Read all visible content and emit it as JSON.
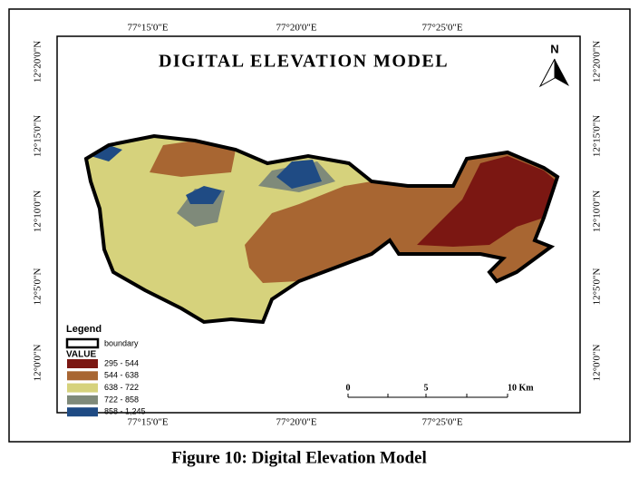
{
  "map": {
    "title": "DIGITAL ELEVATION MODEL",
    "north": "N",
    "top_labels": [
      "77°15'0\"E",
      "77°20'0\"E",
      "77°25'0\"E"
    ],
    "bottom_labels": [
      "77°15'0\"E",
      "77°20'0\"E",
      "77°25'0\"E"
    ],
    "left_labels": [
      "12°20'0\"N",
      "12°15'0\"N",
      "12°10'0\"N",
      "12°5'0\"N",
      "12°0'0\"N"
    ],
    "right_labels": [
      "12°20'0\"N",
      "12°15'0\"N",
      "12°10'0\"N",
      "12°5'0\"N",
      "12°0'0\"N"
    ],
    "legend": {
      "title": "Legend",
      "boundary": "boundary",
      "value_title": "VALUE",
      "classes": [
        {
          "label": "295 - 544",
          "color": "#7b1712"
        },
        {
          "label": "544 - 638",
          "color": "#a86632"
        },
        {
          "label": "638 - 722",
          "color": "#d6d27c"
        },
        {
          "label": "722 - 858",
          "color": "#7f8a7a"
        },
        {
          "label": "858 - 1,245",
          "color": "#1f4b84"
        }
      ]
    },
    "scale_bar": {
      "labels": [
        "0",
        "5",
        "10 Km"
      ]
    }
  },
  "caption": "Figure 10: Digital Elevation Model"
}
